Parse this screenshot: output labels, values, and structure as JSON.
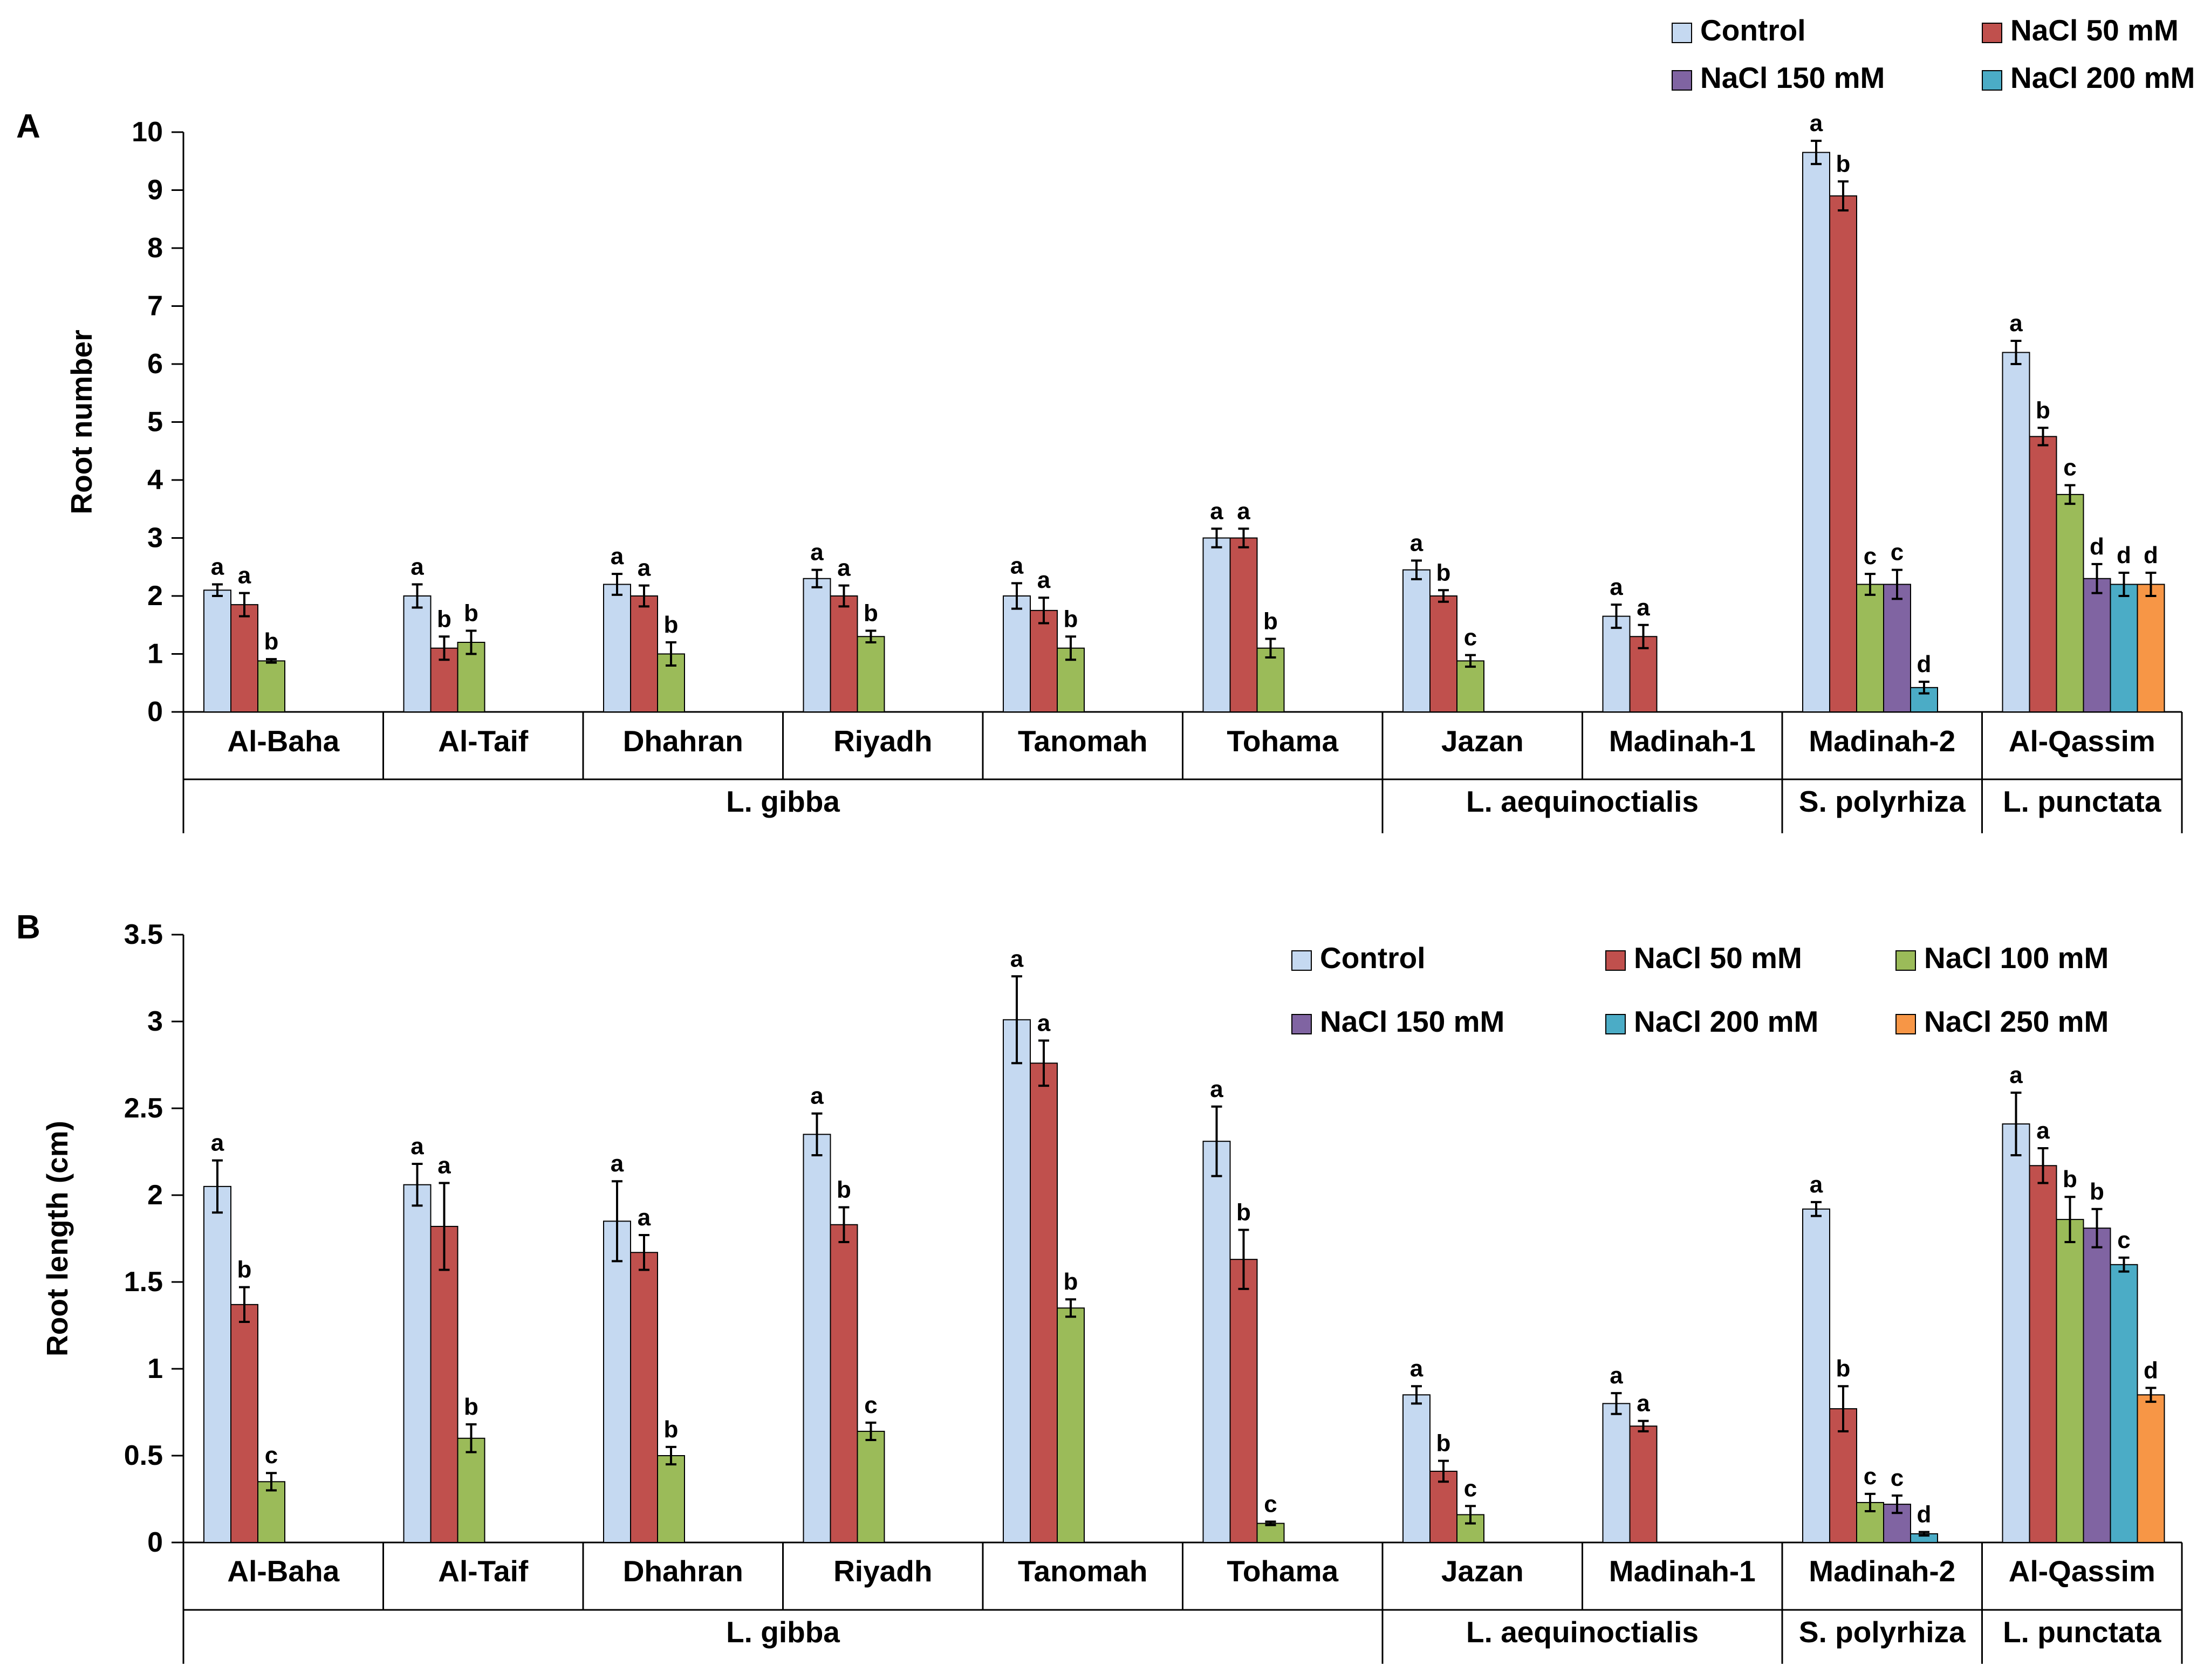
{
  "colors": {
    "Control": "#c5d9f1",
    "NaCl 50 mM": "#c0504d",
    "NaCl 100 mM": "#9bbb59",
    "NaCl 150 mM": "#8064a2",
    "NaCl 200 mM": "#4bacc6",
    "NaCl 250 mM": "#f79646",
    "bar_outline": "#000000",
    "axis": "#000000"
  },
  "legend_entries": [
    "Control",
    "NaCl 50 mM",
    "NaCl 100 mM",
    "NaCl 150 mM",
    "NaCl 200 mM",
    "NaCl 250 mM"
  ],
  "chart_data": [
    {
      "type": "bar",
      "panel_label": "A",
      "ylabel": "Root number",
      "ylim": [
        0,
        10
      ],
      "yticks": [
        0,
        1,
        2,
        3,
        4,
        5,
        6,
        7,
        8,
        9,
        10
      ],
      "ytick_labels": [
        "0",
        "1",
        "2",
        "3",
        "4",
        "5",
        "6",
        "7",
        "8",
        "9",
        "10"
      ],
      "legend_position": "top-right",
      "grid": false,
      "categories": [
        "Al-Baha",
        "Al-Taif",
        "Dhahran",
        "Riyadh",
        "Tanomah",
        "Tohama",
        "Jazan",
        "Madinah-1",
        "Madinah-2",
        "Al-Qassim"
      ],
      "species_groups": [
        {
          "label": "L. gibba",
          "from": 0,
          "to": 5
        },
        {
          "label": "L. aequinoctialis",
          "from": 6,
          "to": 7
        },
        {
          "label": "S. polyrhiza",
          "from": 8,
          "to": 8
        },
        {
          "label": "L. punctata",
          "from": 9,
          "to": 9
        }
      ],
      "groups": [
        {
          "category": "Al-Baha",
          "bars": [
            {
              "series": "Control",
              "value": 2.1,
              "error": 0.1,
              "letter": "a"
            },
            {
              "series": "NaCl 50 mM",
              "value": 1.85,
              "error": 0.2,
              "letter": "a"
            },
            {
              "series": "NaCl 100 mM",
              "value": 0.88,
              "error": 0.03,
              "letter": "b"
            }
          ]
        },
        {
          "category": "Al-Taif",
          "bars": [
            {
              "series": "Control",
              "value": 2.0,
              "error": 0.2,
              "letter": "a"
            },
            {
              "series": "NaCl 50 mM",
              "value": 1.1,
              "error": 0.2,
              "letter": "b"
            },
            {
              "series": "NaCl 100 mM",
              "value": 1.2,
              "error": 0.2,
              "letter": "b"
            }
          ]
        },
        {
          "category": "Dhahran",
          "bars": [
            {
              "series": "Control",
              "value": 2.2,
              "error": 0.18,
              "letter": "a"
            },
            {
              "series": "NaCl 50 mM",
              "value": 2.0,
              "error": 0.18,
              "letter": "a"
            },
            {
              "series": "NaCl 100 mM",
              "value": 1.0,
              "error": 0.2,
              "letter": "b"
            }
          ]
        },
        {
          "category": "Riyadh",
          "bars": [
            {
              "series": "Control",
              "value": 2.3,
              "error": 0.15,
              "letter": "a"
            },
            {
              "series": "NaCl 50 mM",
              "value": 2.0,
              "error": 0.18,
              "letter": "a"
            },
            {
              "series": "NaCl 100 mM",
              "value": 1.3,
              "error": 0.1,
              "letter": "b"
            }
          ]
        },
        {
          "category": "Tanomah",
          "bars": [
            {
              "series": "Control",
              "value": 2.0,
              "error": 0.22,
              "letter": "a"
            },
            {
              "series": "NaCl 50 mM",
              "value": 1.75,
              "error": 0.22,
              "letter": "a"
            },
            {
              "series": "NaCl 100 mM",
              "value": 1.1,
              "error": 0.2,
              "letter": "b"
            }
          ]
        },
        {
          "category": "Tohama",
          "bars": [
            {
              "series": "Control",
              "value": 3.0,
              "error": 0.16,
              "letter": "a"
            },
            {
              "series": "NaCl 50 mM",
              "value": 3.0,
              "error": 0.16,
              "letter": "a"
            },
            {
              "series": "NaCl 100 mM",
              "value": 1.1,
              "error": 0.16,
              "letter": "b"
            }
          ]
        },
        {
          "category": "Jazan",
          "bars": [
            {
              "series": "Control",
              "value": 2.45,
              "error": 0.16,
              "letter": "a"
            },
            {
              "series": "NaCl 50 mM",
              "value": 2.0,
              "error": 0.1,
              "letter": "b"
            },
            {
              "series": "NaCl 100 mM",
              "value": 0.88,
              "error": 0.1,
              "letter": "c"
            }
          ]
        },
        {
          "category": "Madinah-1",
          "bars": [
            {
              "series": "Control",
              "value": 1.65,
              "error": 0.2,
              "letter": "a"
            },
            {
              "series": "NaCl 50 mM",
              "value": 1.3,
              "error": 0.2,
              "letter": "a"
            }
          ]
        },
        {
          "category": "Madinah-2",
          "bars": [
            {
              "series": "Control",
              "value": 9.65,
              "error": 0.2,
              "letter": "a"
            },
            {
              "series": "NaCl 50 mM",
              "value": 8.9,
              "error": 0.25,
              "letter": "b"
            },
            {
              "series": "NaCl 100 mM",
              "value": 2.2,
              "error": 0.18,
              "letter": "c"
            },
            {
              "series": "NaCl 150 mM",
              "value": 2.2,
              "error": 0.25,
              "letter": "c"
            },
            {
              "series": "NaCl 200 mM",
              "value": 0.42,
              "error": 0.1,
              "letter": "d"
            }
          ]
        },
        {
          "category": "Al-Qassim",
          "bars": [
            {
              "series": "Control",
              "value": 6.2,
              "error": 0.2,
              "letter": "a"
            },
            {
              "series": "NaCl 50 mM",
              "value": 4.75,
              "error": 0.15,
              "letter": "b"
            },
            {
              "series": "NaCl 100 mM",
              "value": 3.75,
              "error": 0.16,
              "letter": "c"
            },
            {
              "series": "NaCl 150 mM",
              "value": 2.3,
              "error": 0.25,
              "letter": "d"
            },
            {
              "series": "NaCl 200 mM",
              "value": 2.2,
              "error": 0.2,
              "letter": "d"
            },
            {
              "series": "NaCl 250 mM",
              "value": 2.2,
              "error": 0.2,
              "letter": "d"
            }
          ]
        }
      ]
    },
    {
      "type": "bar",
      "panel_label": "B",
      "ylabel": "Root length (cm)",
      "ylim": [
        0,
        3.5
      ],
      "yticks": [
        0,
        0.5,
        1,
        1.5,
        2,
        2.5,
        3,
        3.5
      ],
      "ytick_labels": [
        "0",
        "0.5",
        "1",
        "1.5",
        "2",
        "2.5",
        "3",
        "3.5"
      ],
      "legend_position": "top-right",
      "grid": false,
      "categories": [
        "Al-Baha",
        "Al-Taif",
        "Dhahran",
        "Riyadh",
        "Tanomah",
        "Tohama",
        "Jazan",
        "Madinah-1",
        "Madinah-2",
        "Al-Qassim"
      ],
      "species_groups": [
        {
          "label": "L. gibba",
          "from": 0,
          "to": 5
        },
        {
          "label": "L. aequinoctialis",
          "from": 6,
          "to": 7
        },
        {
          "label": "S. polyrhiza",
          "from": 8,
          "to": 8
        },
        {
          "label": "L. punctata",
          "from": 9,
          "to": 9
        }
      ],
      "groups": [
        {
          "category": "Al-Baha",
          "bars": [
            {
              "series": "Control",
              "value": 2.05,
              "error": 0.15,
              "letter": "a"
            },
            {
              "series": "NaCl 50 mM",
              "value": 1.37,
              "error": 0.1,
              "letter": "b"
            },
            {
              "series": "NaCl 100 mM",
              "value": 0.35,
              "error": 0.05,
              "letter": "c"
            }
          ]
        },
        {
          "category": "Al-Taif",
          "bars": [
            {
              "series": "Control",
              "value": 2.06,
              "error": 0.12,
              "letter": "a"
            },
            {
              "series": "NaCl 50 mM",
              "value": 1.82,
              "error": 0.25,
              "letter": "a"
            },
            {
              "series": "NaCl 100 mM",
              "value": 0.6,
              "error": 0.08,
              "letter": "b"
            }
          ]
        },
        {
          "category": "Dhahran",
          "bars": [
            {
              "series": "Control",
              "value": 1.85,
              "error": 0.23,
              "letter": "a"
            },
            {
              "series": "NaCl 50 mM",
              "value": 1.67,
              "error": 0.1,
              "letter": "a"
            },
            {
              "series": "NaCl 100 mM",
              "value": 0.5,
              "error": 0.05,
              "letter": "b"
            }
          ]
        },
        {
          "category": "Riyadh",
          "bars": [
            {
              "series": "Control",
              "value": 2.35,
              "error": 0.12,
              "letter": "a"
            },
            {
              "series": "NaCl 50 mM",
              "value": 1.83,
              "error": 0.1,
              "letter": "b"
            },
            {
              "series": "NaCl 100 mM",
              "value": 0.64,
              "error": 0.05,
              "letter": "c"
            }
          ]
        },
        {
          "category": "Tanomah",
          "bars": [
            {
              "series": "Control",
              "value": 3.01,
              "error": 0.25,
              "letter": "a"
            },
            {
              "series": "NaCl 50 mM",
              "value": 2.76,
              "error": 0.13,
              "letter": "a"
            },
            {
              "series": "NaCl 100 mM",
              "value": 1.35,
              "error": 0.05,
              "letter": "b"
            }
          ]
        },
        {
          "category": "Tohama",
          "bars": [
            {
              "series": "Control",
              "value": 2.31,
              "error": 0.2,
              "letter": "a"
            },
            {
              "series": "NaCl 50 mM",
              "value": 1.63,
              "error": 0.17,
              "letter": "b"
            },
            {
              "series": "NaCl 100 mM",
              "value": 0.11,
              "error": 0.01,
              "letter": "c"
            }
          ]
        },
        {
          "category": "Jazan",
          "bars": [
            {
              "series": "Control",
              "value": 0.85,
              "error": 0.05,
              "letter": "a"
            },
            {
              "series": "NaCl 50 mM",
              "value": 0.41,
              "error": 0.06,
              "letter": "b"
            },
            {
              "series": "NaCl 100 mM",
              "value": 0.16,
              "error": 0.05,
              "letter": "c"
            }
          ]
        },
        {
          "category": "Madinah-1",
          "bars": [
            {
              "series": "Control",
              "value": 0.8,
              "error": 0.06,
              "letter": "a"
            },
            {
              "series": "NaCl 50 mM",
              "value": 0.67,
              "error": 0.03,
              "letter": "a"
            }
          ]
        },
        {
          "category": "Madinah-2",
          "bars": [
            {
              "series": "Control",
              "value": 1.92,
              "error": 0.04,
              "letter": "a"
            },
            {
              "series": "NaCl 50 mM",
              "value": 0.77,
              "error": 0.13,
              "letter": "b"
            },
            {
              "series": "NaCl 100 mM",
              "value": 0.23,
              "error": 0.05,
              "letter": "c"
            },
            {
              "series": "NaCl 150 mM",
              "value": 0.22,
              "error": 0.05,
              "letter": "c"
            },
            {
              "series": "NaCl 200 mM",
              "value": 0.05,
              "error": 0.01,
              "letter": "d"
            }
          ]
        },
        {
          "category": "Al-Qassim",
          "bars": [
            {
              "series": "Control",
              "value": 2.41,
              "error": 0.18,
              "letter": "a"
            },
            {
              "series": "NaCl 50 mM",
              "value": 2.17,
              "error": 0.1,
              "letter": "a"
            },
            {
              "series": "NaCl 100 mM",
              "value": 1.86,
              "error": 0.13,
              "letter": "b"
            },
            {
              "series": "NaCl 150 mM",
              "value": 1.81,
              "error": 0.11,
              "letter": "b"
            },
            {
              "series": "NaCl 200 mM",
              "value": 1.6,
              "error": 0.04,
              "letter": "c"
            },
            {
              "series": "NaCl 250 mM",
              "value": 0.85,
              "error": 0.04,
              "letter": "d"
            }
          ]
        }
      ]
    }
  ]
}
